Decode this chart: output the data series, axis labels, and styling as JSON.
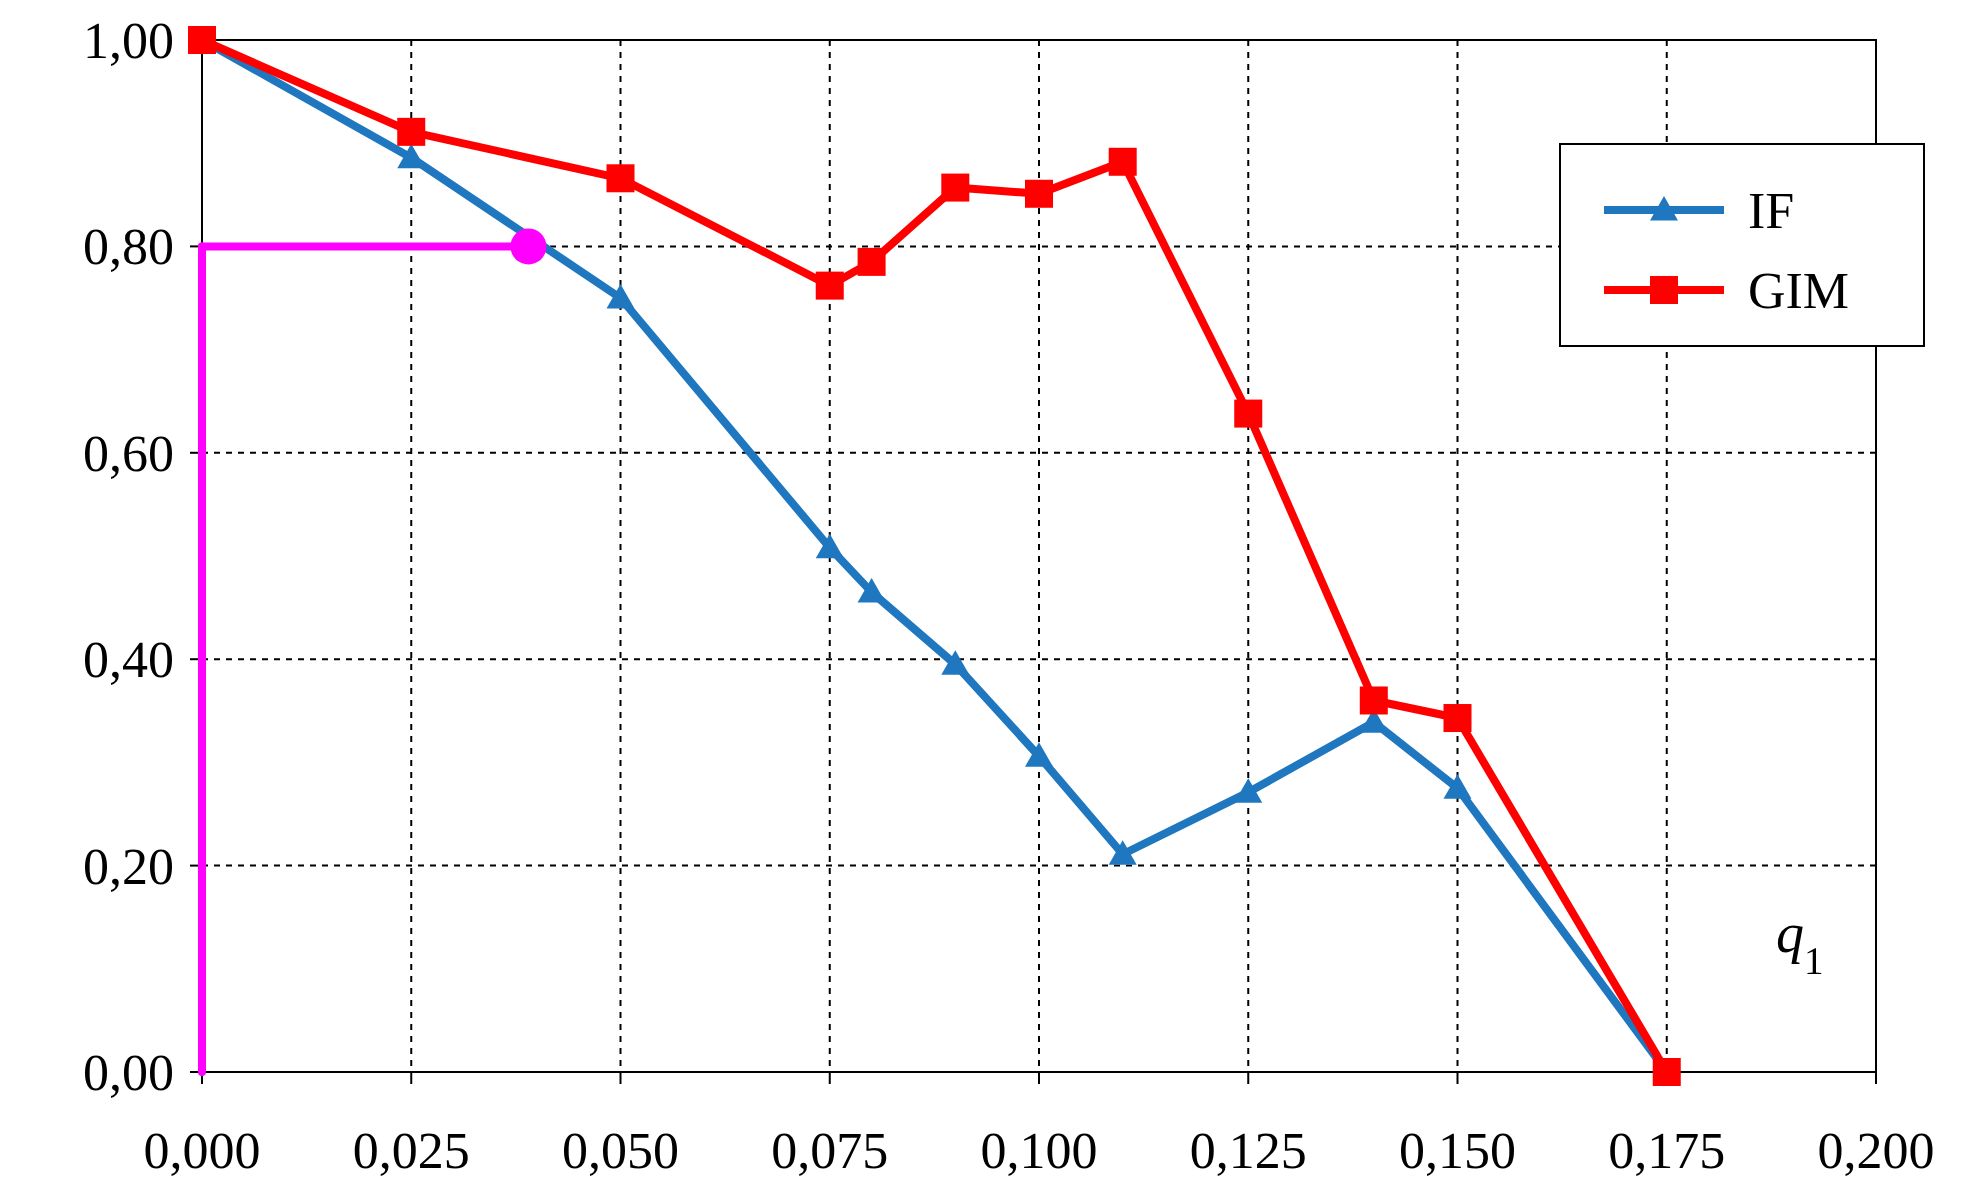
{
  "chart_data": {
    "type": "line",
    "xlabel": "q$_{1}$",
    "xlim": [
      0,
      0.2
    ],
    "ylim": [
      0,
      1
    ],
    "xticks": [
      {
        "value": 0,
        "label": "0,000"
      },
      {
        "value": 0.025,
        "label": "0,025"
      },
      {
        "value": 0.05,
        "label": "0,050"
      },
      {
        "value": 0.075,
        "label": "0,075"
      },
      {
        "value": 0.1,
        "label": "0,100"
      },
      {
        "value": 0.125,
        "label": "0,125"
      },
      {
        "value": 0.15,
        "label": "0,150"
      },
      {
        "value": 0.175,
        "label": "0,175"
      },
      {
        "value": 0.2,
        "label": "0,200"
      }
    ],
    "yticks": [
      {
        "value": 0,
        "label": "0,00"
      },
      {
        "value": 0.2,
        "label": "0,20"
      },
      {
        "value": 0.4,
        "label": "0,40"
      },
      {
        "value": 0.6,
        "label": "0,60"
      },
      {
        "value": 0.8,
        "label": "0,80"
      },
      {
        "value": 1,
        "label": "1,00"
      }
    ],
    "grid": true,
    "legend": "top right",
    "line_style": "solid",
    "series": [
      {
        "name": "IF",
        "color": "#1f77c0",
        "marker": "triangle",
        "x": [
          0,
          0.025,
          0.05,
          0.075,
          0.08,
          0.09,
          0.1,
          0.11,
          0.125,
          0.14,
          0.15,
          0.175
        ],
        "values": [
          1,
          0.886,
          0.75,
          0.508,
          0.465,
          0.395,
          0.306,
          0.211,
          0.271,
          0.339,
          0.275,
          0
        ]
      },
      {
        "name": "GIM",
        "color": "#ff0000",
        "marker": "square",
        "x": [
          0,
          0.025,
          0.05,
          0.075,
          0.08,
          0.09,
          0.1,
          0.11,
          0.125,
          0.14,
          0.15,
          0.175
        ],
        "values": [
          1,
          0.911,
          0.866,
          0.762,
          0.785,
          0.857,
          0.851,
          0.882,
          0.638,
          0.36,
          0.343,
          0
        ]
      },
      {
        "type": "line",
        "color": "#ff00ff",
        "marker": "none",
        "x": [
          0,
          0.039
        ],
        "values": [
          0.8,
          0.8
        ]
      },
      {
        "type": "line",
        "color": "#ff00ff",
        "marker": "none",
        "x": [
          0,
          0
        ],
        "values": [
          0,
          0.8
        ]
      },
      {
        "type": "scatter",
        "color": "#ff00ff",
        "marker": "circle",
        "x": [
          0.039
        ],
        "values": [
          0.8
        ]
      }
    ]
  }
}
